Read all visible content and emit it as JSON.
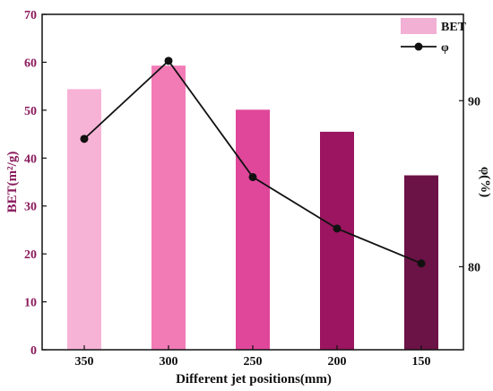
{
  "chart_data": {
    "type": "bar",
    "xlabel": "Different jet positions(mm)",
    "ylabel_left": "BET(m²/g)",
    "ylabel_right": "φ(%)",
    "categories": [
      "350",
      "300",
      "250",
      "200",
      "150"
    ],
    "left_axis": {
      "ylim": [
        0,
        70
      ],
      "ticks": [
        0,
        10,
        20,
        30,
        40,
        50,
        60,
        70
      ]
    },
    "right_axis": {
      "ylim": [
        75,
        95.2
      ],
      "ticks": [
        "80",
        "90"
      ],
      "tick_values": [
        80,
        90
      ]
    },
    "series": [
      {
        "name": "BET",
        "kind": "bar",
        "axis": "left",
        "values": [
          54.4,
          59.3,
          50.1,
          45.5,
          36.4
        ],
        "colors": [
          "#f7b3d6",
          "#f27bb6",
          "#e0479a",
          "#9b1560",
          "#6b1246"
        ]
      },
      {
        "name": "φ",
        "kind": "line",
        "axis": "right",
        "values": [
          87.7,
          92.4,
          85.4,
          82.3,
          80.2
        ],
        "color": "#111111"
      }
    ],
    "legend_position": "top-right",
    "grid": false
  }
}
